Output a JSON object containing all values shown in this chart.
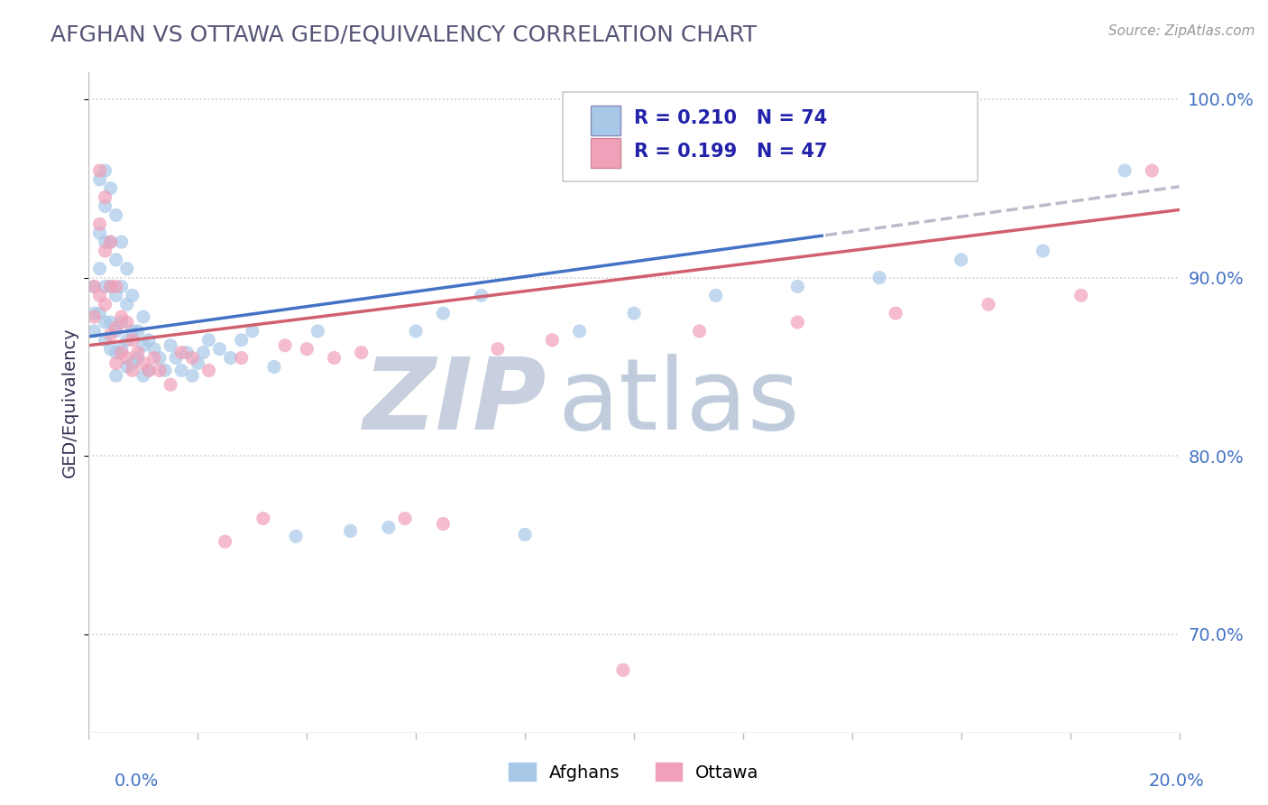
{
  "title": "AFGHAN VS OTTAWA GED/EQUIVALENCY CORRELATION CHART",
  "source": "Source: ZipAtlas.com",
  "ylabel": "GED/Equivalency",
  "xmin": 0.0,
  "xmax": 0.2,
  "ymin": 0.645,
  "ymax": 1.015,
  "yticks": [
    0.7,
    0.8,
    0.9,
    1.0
  ],
  "ytick_labels": [
    "70.0%",
    "80.0%",
    "90.0%",
    "100.0%"
  ],
  "afghan_R": 0.21,
  "afghan_N": 74,
  "ottawa_R": 0.199,
  "ottawa_N": 47,
  "afghan_color": "#A8C8E8",
  "ottawa_color": "#F0A0B8",
  "trend_afghan_color": "#4472C4",
  "trend_ottawa_color": "#D06070",
  "trend_dashed_color": "#BBBBCC",
  "watermark_zip": "ZIP",
  "watermark_atlas": "atlas",
  "watermark_color_zip": "#C8D0E0",
  "watermark_color_atlas": "#C8D5E8",
  "legend_text_color": "#2222AA",
  "background_color": "#FFFFFF",
  "title_color": "#555577",
  "title_fontsize": 18,
  "scatter_size": 120,
  "scatter_alpha": 0.7,
  "trend_solid_end_x": 0.135,
  "trend_line_intercept_a": 0.867,
  "trend_line_slope_a": 0.42,
  "trend_line_intercept_o": 0.862,
  "trend_line_slope_o": 0.38,
  "afghan_x": [
    0.001,
    0.001,
    0.001,
    0.002,
    0.002,
    0.002,
    0.002,
    0.003,
    0.003,
    0.003,
    0.003,
    0.003,
    0.003,
    0.004,
    0.004,
    0.004,
    0.004,
    0.004,
    0.005,
    0.005,
    0.005,
    0.005,
    0.005,
    0.005,
    0.006,
    0.006,
    0.006,
    0.006,
    0.007,
    0.007,
    0.007,
    0.007,
    0.008,
    0.008,
    0.008,
    0.009,
    0.009,
    0.01,
    0.01,
    0.01,
    0.011,
    0.011,
    0.012,
    0.013,
    0.014,
    0.015,
    0.016,
    0.017,
    0.018,
    0.019,
    0.02,
    0.021,
    0.022,
    0.024,
    0.026,
    0.028,
    0.03,
    0.034,
    0.038,
    0.042,
    0.048,
    0.055,
    0.06,
    0.065,
    0.072,
    0.08,
    0.09,
    0.1,
    0.115,
    0.13,
    0.145,
    0.16,
    0.175,
    0.19
  ],
  "afghan_y": [
    0.895,
    0.88,
    0.87,
    0.955,
    0.925,
    0.905,
    0.88,
    0.96,
    0.94,
    0.92,
    0.895,
    0.875,
    0.865,
    0.95,
    0.92,
    0.895,
    0.875,
    0.86,
    0.935,
    0.91,
    0.89,
    0.87,
    0.858,
    0.845,
    0.92,
    0.895,
    0.875,
    0.86,
    0.905,
    0.885,
    0.865,
    0.85,
    0.89,
    0.87,
    0.852,
    0.87,
    0.855,
    0.878,
    0.862,
    0.845,
    0.865,
    0.848,
    0.86,
    0.855,
    0.848,
    0.862,
    0.855,
    0.848,
    0.858,
    0.845,
    0.852,
    0.858,
    0.865,
    0.86,
    0.855,
    0.865,
    0.87,
    0.85,
    0.755,
    0.87,
    0.758,
    0.76,
    0.87,
    0.88,
    0.89,
    0.756,
    0.87,
    0.88,
    0.89,
    0.895,
    0.9,
    0.91,
    0.915,
    0.96
  ],
  "ottawa_x": [
    0.001,
    0.001,
    0.002,
    0.002,
    0.002,
    0.003,
    0.003,
    0.003,
    0.004,
    0.004,
    0.004,
    0.005,
    0.005,
    0.005,
    0.006,
    0.006,
    0.007,
    0.007,
    0.008,
    0.008,
    0.009,
    0.01,
    0.011,
    0.012,
    0.013,
    0.015,
    0.017,
    0.019,
    0.022,
    0.025,
    0.028,
    0.032,
    0.036,
    0.04,
    0.045,
    0.05,
    0.058,
    0.065,
    0.075,
    0.085,
    0.098,
    0.112,
    0.13,
    0.148,
    0.165,
    0.182,
    0.195
  ],
  "ottawa_y": [
    0.895,
    0.878,
    0.96,
    0.93,
    0.89,
    0.945,
    0.915,
    0.885,
    0.92,
    0.895,
    0.868,
    0.895,
    0.872,
    0.852,
    0.878,
    0.858,
    0.875,
    0.855,
    0.865,
    0.848,
    0.858,
    0.852,
    0.848,
    0.855,
    0.848,
    0.84,
    0.858,
    0.855,
    0.848,
    0.752,
    0.855,
    0.765,
    0.862,
    0.86,
    0.855,
    0.858,
    0.765,
    0.762,
    0.86,
    0.865,
    0.68,
    0.87,
    0.875,
    0.88,
    0.885,
    0.89,
    0.96
  ]
}
